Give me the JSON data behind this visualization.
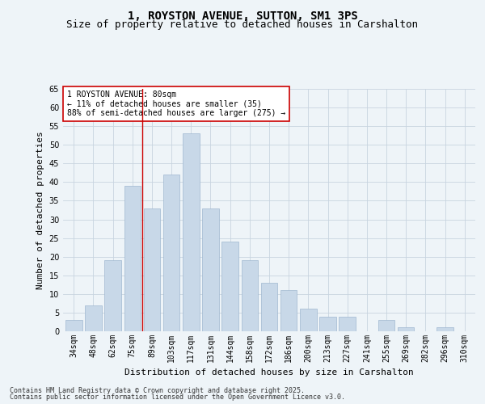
{
  "title": "1, ROYSTON AVENUE, SUTTON, SM1 3PS",
  "subtitle": "Size of property relative to detached houses in Carshalton",
  "xlabel": "Distribution of detached houses by size in Carshalton",
  "ylabel": "Number of detached properties",
  "categories": [
    "34sqm",
    "48sqm",
    "62sqm",
    "75sqm",
    "89sqm",
    "103sqm",
    "117sqm",
    "131sqm",
    "144sqm",
    "158sqm",
    "172sqm",
    "186sqm",
    "200sqm",
    "213sqm",
    "227sqm",
    "241sqm",
    "255sqm",
    "269sqm",
    "282sqm",
    "296sqm",
    "310sqm"
  ],
  "values": [
    3,
    7,
    19,
    39,
    33,
    42,
    53,
    33,
    24,
    19,
    13,
    11,
    6,
    4,
    4,
    0,
    3,
    1,
    0,
    1,
    0
  ],
  "bar_color": "#c8d8e8",
  "bar_edge_color": "#a0b8d0",
  "grid_color": "#c8d4e0",
  "background_color": "#eef4f8",
  "annotation_text": "1 ROYSTON AVENUE: 80sqm\n← 11% of detached houses are smaller (35)\n88% of semi-detached houses are larger (275) →",
  "annotation_box_color": "#ffffff",
  "annotation_border_color": "#cc0000",
  "red_line_x": 3.5,
  "ylim": [
    0,
    65
  ],
  "yticks": [
    0,
    5,
    10,
    15,
    20,
    25,
    30,
    35,
    40,
    45,
    50,
    55,
    60,
    65
  ],
  "footer_line1": "Contains HM Land Registry data © Crown copyright and database right 2025.",
  "footer_line2": "Contains public sector information licensed under the Open Government Licence v3.0.",
  "title_fontsize": 10,
  "subtitle_fontsize": 9,
  "axis_label_fontsize": 8,
  "tick_fontsize": 7,
  "annotation_fontsize": 7,
  "footer_fontsize": 6,
  "ylabel_fontsize": 8
}
